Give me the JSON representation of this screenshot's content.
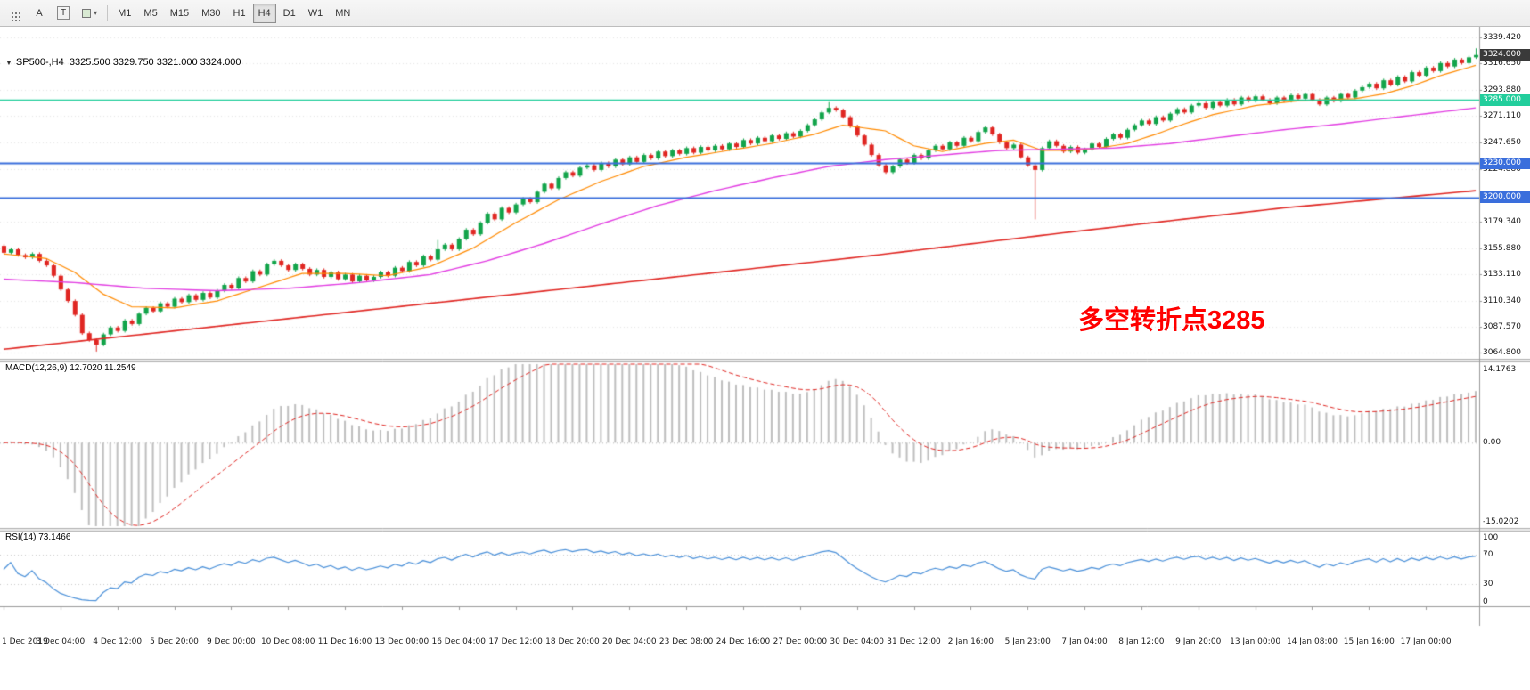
{
  "toolbar": {
    "tool_buttons": [
      {
        "label": "A",
        "name": "annotation-tool"
      },
      {
        "label": "T",
        "name": "text-tool"
      }
    ],
    "timeframes": [
      "M1",
      "M5",
      "M15",
      "M30",
      "H1",
      "H4",
      "D1",
      "W1",
      "MN"
    ],
    "selected_timeframe": "H4"
  },
  "chart_header": {
    "collapse_icon": "▼",
    "title": "SP500-,H4",
    "ohlc": "3325.500 3329.750 3321.000 3324.000"
  },
  "indicators": {
    "macd_label": "MACD(12,26,9) 12.7020 11.2549",
    "rsi_label": "RSI(14) 73.1466"
  },
  "annotation": {
    "text": "多空转折点3285",
    "color": "#FF0000"
  },
  "chart_data": {
    "type": "candlestick",
    "symbol": "SP500-",
    "period": "H4",
    "x_labels": [
      "1 Dec 2019",
      "3 Dec 04:00",
      "4 Dec 12:00",
      "5 Dec 20:00",
      "9 Dec 00:00",
      "10 Dec 08:00",
      "11 Dec 16:00",
      "13 Dec 00:00",
      "16 Dec 04:00",
      "17 Dec 12:00",
      "18 Dec 20:00",
      "20 Dec 04:00",
      "23 Dec 08:00",
      "24 Dec 16:00",
      "27 Dec 00:00",
      "30 Dec 04:00",
      "31 Dec 12:00",
      "2 Jan 16:00",
      "5 Jan 23:00",
      "7 Jan 04:00",
      "8 Jan 12:00",
      "9 Jan 20:00",
      "13 Jan 00:00",
      "14 Jan 08:00",
      "15 Jan 16:00",
      "17 Jan 00:00"
    ],
    "main": {
      "ylim": [
        3060.5,
        3345.5
      ],
      "price_labels": [
        "3339.420",
        "3316.650",
        "3293.880",
        "3271.110",
        "3247.650",
        "3224.880",
        "3179.340",
        "3155.880",
        "3133.110",
        "3110.340",
        "3087.570",
        "3064.800"
      ],
      "current_price": {
        "value": 3324.0,
        "label": "3324.000",
        "color": "#3a3a3a"
      },
      "hlines": [
        {
          "value": 3285,
          "label": "3285.000",
          "color": "#22CE9C",
          "width": 1.5
        },
        {
          "value": 3230,
          "label": "3230.000",
          "color": "#3A6EDC",
          "width": 2
        },
        {
          "value": 3200,
          "label": "3200.000",
          "color": "#3A6EDC",
          "width": 2
        }
      ],
      "candle_up_color": "#12A44A",
      "candle_down_color": "#E02622",
      "first_open": 3158,
      "wick_pad": 1.4,
      "closes": [
        3152,
        3155,
        3150,
        3148,
        3151,
        3145,
        3141,
        3132,
        3120,
        3110,
        3098,
        3082,
        3076,
        3072,
        3081,
        3087,
        3084,
        3093,
        3090,
        3099,
        3104,
        3101,
        3108,
        3105,
        3112,
        3109,
        3115,
        3111,
        3117,
        3113,
        3119,
        3124,
        3121,
        3130,
        3127,
        3136,
        3133,
        3142,
        3145,
        3141,
        3137,
        3142,
        3138,
        3133,
        3137,
        3131,
        3135,
        3129,
        3133,
        3127,
        3132,
        3128,
        3131,
        3135,
        3132,
        3139,
        3136,
        3144,
        3141,
        3149,
        3146,
        3155,
        3159,
        3155,
        3164,
        3172,
        3168,
        3178,
        3186,
        3181,
        3191,
        3187,
        3194,
        3199,
        3196,
        3205,
        3212,
        3208,
        3217,
        3222,
        3219,
        3226,
        3228,
        3224,
        3230,
        3227,
        3233,
        3229,
        3235,
        3231,
        3237,
        3234,
        3240,
        3236,
        3241,
        3238,
        3243,
        3239,
        3244,
        3241,
        3245,
        3242,
        3247,
        3244,
        3250,
        3247,
        3252,
        3249,
        3254,
        3251,
        3256,
        3253,
        3258,
        3263,
        3268,
        3274,
        3278,
        3276,
        3270,
        3262,
        3254,
        3246,
        3237,
        3228,
        3222,
        3227,
        3233,
        3230,
        3237,
        3234,
        3241,
        3245,
        3242,
        3248,
        3245,
        3252,
        3249,
        3257,
        3261,
        3255,
        3248,
        3243,
        3246,
        3235,
        3228,
        3224,
        3243,
        3249,
        3245,
        3240,
        3244,
        3239,
        3242,
        3247,
        3244,
        3251,
        3255,
        3252,
        3259,
        3263,
        3267,
        3264,
        3270,
        3267,
        3273,
        3277,
        3274,
        3280,
        3282,
        3278,
        3283,
        3280,
        3285,
        3281,
        3287,
        3284,
        3288,
        3285,
        3282,
        3287,
        3284,
        3289,
        3286,
        3290,
        3285,
        3281,
        3287,
        3284,
        3290,
        3287,
        3293,
        3296,
        3299,
        3295,
        3302,
        3298,
        3305,
        3301,
        3309,
        3306,
        3313,
        3310,
        3317,
        3314,
        3320,
        3317,
        3322,
        3324
      ],
      "special_wicks": {
        "13": {
          "low": 3066
        },
        "61": {
          "high": 3163
        },
        "116": {
          "high": 3283
        },
        "145": {
          "low": 3181
        },
        "207": {
          "high": 3329.8
        }
      },
      "ma_lines": [
        {
          "name": "fast-ma",
          "color": "#FF8A00",
          "width": 1.2,
          "anchors": [
            [
              0,
              3151
            ],
            [
              6,
              3147
            ],
            [
              10,
              3135
            ],
            [
              14,
              3116
            ],
            [
              18,
              3105
            ],
            [
              24,
              3104
            ],
            [
              30,
              3110
            ],
            [
              36,
              3122
            ],
            [
              42,
              3134
            ],
            [
              48,
              3134
            ],
            [
              54,
              3132
            ],
            [
              60,
              3140
            ],
            [
              66,
              3156
            ],
            [
              72,
              3178
            ],
            [
              78,
              3198
            ],
            [
              84,
              3214
            ],
            [
              90,
              3227
            ],
            [
              96,
              3235
            ],
            [
              102,
              3241
            ],
            [
              108,
              3247
            ],
            [
              114,
              3255
            ],
            [
              118,
              3263
            ],
            [
              124,
              3258
            ],
            [
              128,
              3245
            ],
            [
              132,
              3240
            ],
            [
              138,
              3247
            ],
            [
              142,
              3250
            ],
            [
              146,
              3241
            ],
            [
              150,
              3241
            ],
            [
              154,
              3243
            ],
            [
              158,
              3247
            ],
            [
              162,
              3255
            ],
            [
              166,
              3264
            ],
            [
              170,
              3272
            ],
            [
              176,
              3280
            ],
            [
              182,
              3284
            ],
            [
              186,
              3285
            ],
            [
              190,
              3286
            ],
            [
              194,
              3290
            ],
            [
              198,
              3297
            ],
            [
              202,
              3306
            ],
            [
              207,
              3315
            ]
          ]
        },
        {
          "name": "mid-ma",
          "color": "#E23CE2",
          "width": 1.4,
          "anchors": [
            [
              0,
              3129
            ],
            [
              10,
              3126
            ],
            [
              20,
              3121
            ],
            [
              30,
              3119
            ],
            [
              40,
              3121
            ],
            [
              50,
              3126
            ],
            [
              60,
              3133
            ],
            [
              68,
              3145
            ],
            [
              76,
              3160
            ],
            [
              84,
              3177
            ],
            [
              92,
              3193
            ],
            [
              100,
              3206
            ],
            [
              108,
              3217
            ],
            [
              116,
              3227
            ],
            [
              124,
              3233
            ],
            [
              132,
              3237
            ],
            [
              140,
              3241
            ],
            [
              148,
              3242
            ],
            [
              156,
              3243
            ],
            [
              164,
              3247
            ],
            [
              172,
              3253
            ],
            [
              180,
              3259
            ],
            [
              188,
              3264
            ],
            [
              196,
              3270
            ],
            [
              207,
              3278
            ]
          ]
        },
        {
          "name": "slow-ma",
          "color": "#E02622",
          "width": 1.6,
          "anchors": [
            [
              0,
              3068
            ],
            [
              30,
              3088
            ],
            [
              60,
              3108
            ],
            [
              90,
              3128
            ],
            [
              120,
              3148
            ],
            [
              150,
              3170
            ],
            [
              180,
              3191
            ],
            [
              207,
              3206
            ]
          ]
        }
      ]
    },
    "macd": {
      "params": "12,26,9",
      "value": 12.702,
      "signal": 11.2549,
      "axis_labels": {
        "max": "14.1763",
        "zero": "0.00",
        "min": "-15.0202"
      },
      "hist_color": "#BFBFBF",
      "signal_color": "#E02622"
    },
    "rsi": {
      "period": 14,
      "value": 73.1466,
      "axis_labels": [
        "100",
        "70",
        "30",
        "0"
      ],
      "levels": [
        70,
        30
      ],
      "line_color": "#4A90D9"
    }
  }
}
